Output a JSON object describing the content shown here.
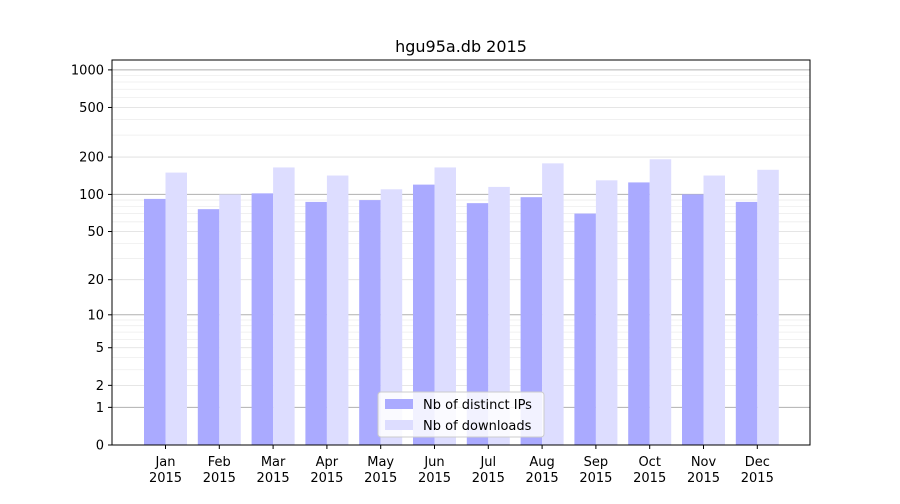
{
  "chart_data": {
    "type": "bar",
    "title": "hgu95a.db 2015",
    "xlabel": "",
    "ylabel": "",
    "scale": "log1p",
    "ylim": [
      0,
      1200
    ],
    "y_ticks": [
      0,
      1,
      2,
      5,
      10,
      20,
      50,
      100,
      200,
      500,
      1000
    ],
    "y_tick_labels": [
      "0",
      "1",
      "2",
      "5",
      "10",
      "20",
      "50",
      "100",
      "200",
      "500",
      "1000"
    ],
    "categories": [
      [
        "Jan",
        "2015"
      ],
      [
        "Feb",
        "2015"
      ],
      [
        "Mar",
        "2015"
      ],
      [
        "Apr",
        "2015"
      ],
      [
        "May",
        "2015"
      ],
      [
        "Jun",
        "2015"
      ],
      [
        "Jul",
        "2015"
      ],
      [
        "Aug",
        "2015"
      ],
      [
        "Sep",
        "2015"
      ],
      [
        "Oct",
        "2015"
      ],
      [
        "Nov",
        "2015"
      ],
      [
        "Dec",
        "2015"
      ]
    ],
    "series": [
      {
        "name": "Nb of distinct IPs",
        "color": "#aaaaff",
        "values": [
          92,
          76,
          102,
          87,
          90,
          120,
          85,
          95,
          70,
          125,
          100,
          87
        ]
      },
      {
        "name": "Nb of downloads",
        "color": "#ddddff",
        "values": [
          150,
          100,
          165,
          142,
          110,
          165,
          115,
          178,
          130,
          192,
          142,
          158
        ]
      }
    ],
    "grid": true,
    "legend_position": "bottom-center"
  }
}
